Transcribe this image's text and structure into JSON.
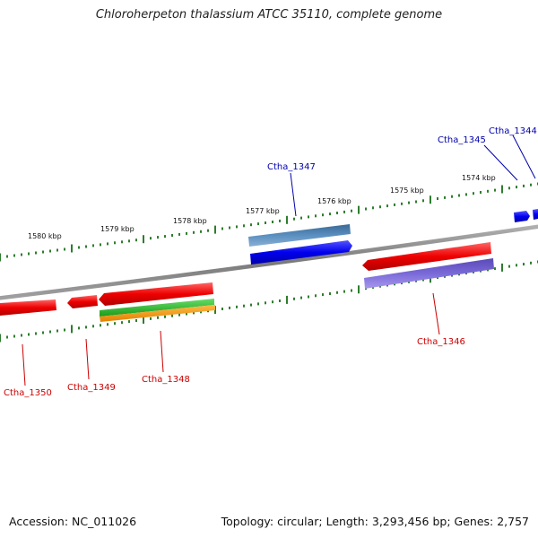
{
  "title": "Chloroherpeton thalassium ATCC 35110, complete genome",
  "footer": {
    "accession": "Accession: NC_011026",
    "stats": "Topology: circular; Length: 3,293,456 bp; Genes: 2,757"
  },
  "colors": {
    "backbone": "#8a8a8a",
    "tick": "#2e7d2e",
    "forward_label": "#0000aa",
    "reverse_label": "#cc0000",
    "red": "#ee0000",
    "blue": "#0000ee",
    "steelblue": "#4a80b0",
    "slateblue": "#6a5acd",
    "green": "#22bb22",
    "orange": "#ff9900"
  },
  "ticks_top": [
    {
      "label": "1574 kbp"
    },
    {
      "label": "1575 kbp"
    },
    {
      "label": "1576 kbp"
    },
    {
      "label": "1577 kbp"
    },
    {
      "label": "1578 kbp"
    },
    {
      "label": "1579 kbp"
    },
    {
      "label": "1580 kbp"
    }
  ],
  "gene_labels": [
    {
      "text": "Ctha_1344",
      "strand": "forward"
    },
    {
      "text": "Ctha_1345",
      "strand": "forward"
    },
    {
      "text": "Ctha_1347",
      "strand": "forward"
    },
    {
      "text": "Ctha_1346",
      "strand": "reverse"
    },
    {
      "text": "Ctha_1348",
      "strand": "reverse"
    },
    {
      "text": "Ctha_1349",
      "strand": "reverse"
    },
    {
      "text": "Ctha_1350",
      "strand": "reverse"
    }
  ]
}
